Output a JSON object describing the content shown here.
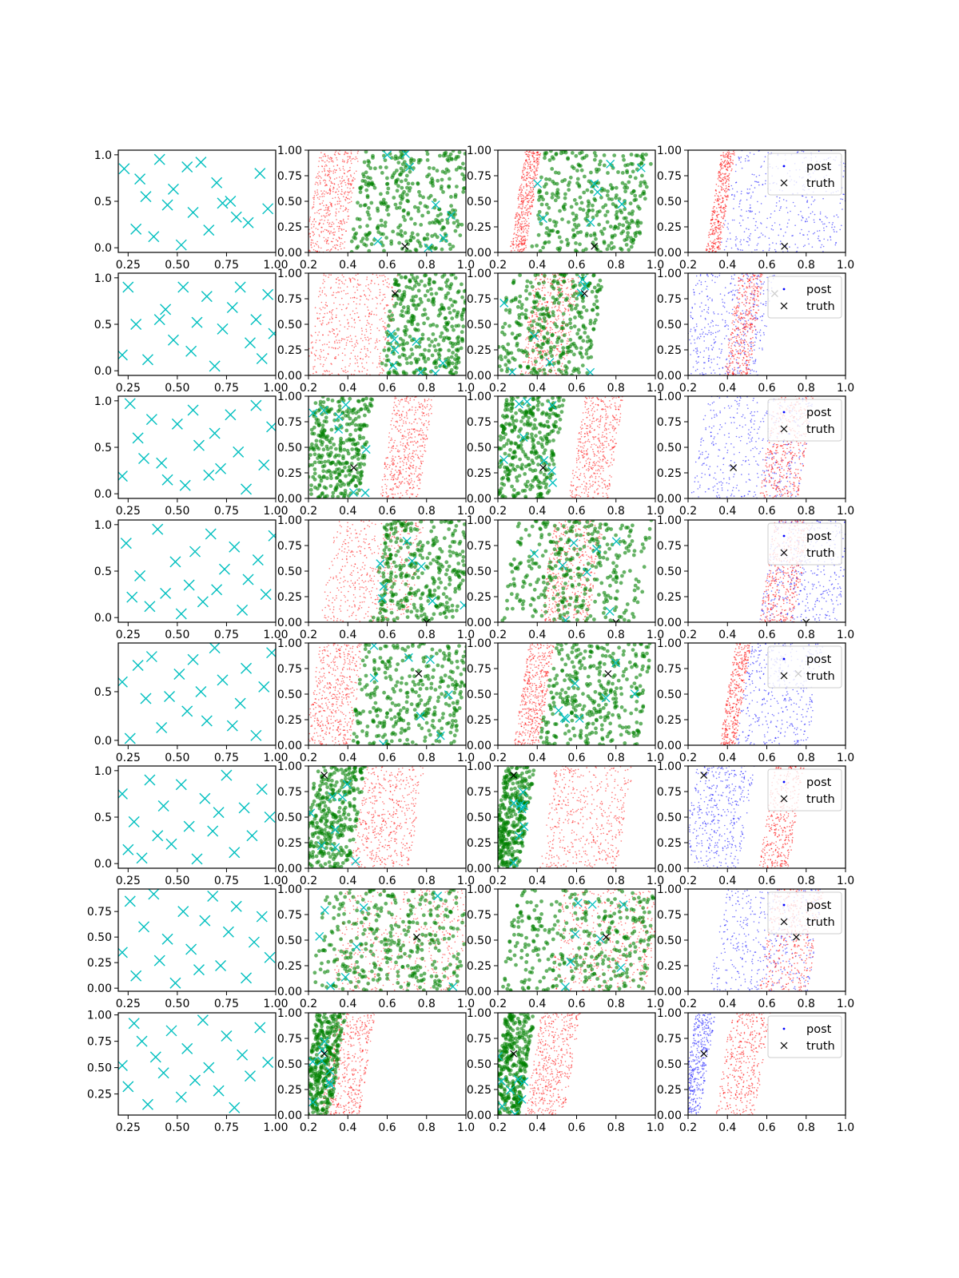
{
  "figure": {
    "colors": {
      "sample_markers": "#00bfbf",
      "posterior_red": "#ff0000",
      "posterior_green": "#008000",
      "posterior_blue": "#0000ff",
      "truth_marker": "#000000",
      "axes": "#000000",
      "background": "#ffffff"
    },
    "legend": {
      "entries": [
        "post",
        "truth"
      ],
      "location": "upper right"
    }
  },
  "chart_data": [
    {
      "type": "scatter",
      "grid": "8 rows x 4 columns of scatter panels",
      "columns": [
        {
          "column": 1,
          "content": "sample points (cyan x markers)",
          "xlim": [
            0.2,
            1.0
          ],
          "x_ticks": [
            "0.25",
            "0.50",
            "0.75",
            "1.00"
          ]
        },
        {
          "column": 2,
          "content": "green dots over red dots, cyan x markers, black truth x",
          "xlim": [
            0.2,
            1.0
          ],
          "ylim": [
            0.0,
            1.0
          ],
          "x_ticks": [
            "0.2",
            "0.4",
            "0.6",
            "0.8",
            "1.0"
          ],
          "y_ticks": [
            "0.00",
            "0.25",
            "0.50",
            "0.75",
            "1.00"
          ]
        },
        {
          "column": 3,
          "content": "green dots over red dots, cyan x markers, black truth x",
          "xlim": [
            0.2,
            1.0
          ],
          "ylim": [
            0.0,
            1.0
          ],
          "x_ticks": [
            "0.2",
            "0.4",
            "0.6",
            "0.8",
            "1.0"
          ],
          "y_ticks": [
            "0.00",
            "0.25",
            "0.50",
            "0.75",
            "1.00"
          ]
        },
        {
          "column": 4,
          "content": "blue (post) and red points, black truth x",
          "xlim": [
            0.2,
            1.0
          ],
          "ylim": [
            0.0,
            1.0
          ],
          "x_ticks": [
            "0.2",
            "0.4",
            "0.6",
            "0.8",
            "1.0"
          ],
          "y_ticks": [
            "0.00",
            "0.25",
            "0.50",
            "0.75",
            "1.00"
          ],
          "legend": [
            "post",
            "truth"
          ]
        }
      ],
      "rows": [
        {
          "row": 1,
          "col1_y_ticks": [
            "0.0",
            "0.5",
            "1.0"
          ],
          "col1_ylim": [
            -0.05,
            1.05
          ],
          "truth": [
            0.69,
            0.06
          ],
          "bands": {
            "c2_red": [
              0.22,
              0.42
            ],
            "c2_green": [
              0.45,
              1.0
            ],
            "c3_red": [
              0.3,
              0.38
            ],
            "c3_green": [
              0.4,
              0.95
            ],
            "c4_red": [
              0.33,
              0.4
            ],
            "c4_blue": [
              0.4,
              1.0
            ]
          },
          "sample_x": [
            0.23,
            0.29,
            0.31,
            0.34,
            0.38,
            0.41,
            0.45,
            0.48,
            0.52,
            0.55,
            0.58,
            0.62,
            0.66,
            0.7,
            0.73,
            0.77,
            0.8,
            0.86,
            0.92,
            0.96
          ],
          "sample_y": [
            0.85,
            0.2,
            0.74,
            0.55,
            0.12,
            0.95,
            0.46,
            0.63,
            0.03,
            0.87,
            0.38,
            0.92,
            0.19,
            0.7,
            0.48,
            0.5,
            0.33,
            0.27,
            0.8,
            0.42
          ]
        },
        {
          "row": 2,
          "col1_y_ticks": [
            "0.0",
            "0.5",
            "1.0"
          ],
          "col1_ylim": [
            -0.05,
            1.05
          ],
          "truth": [
            0.64,
            0.8
          ],
          "bands": {
            "c2_red": [
              0.22,
              0.62
            ],
            "c2_green": [
              0.6,
              1.0
            ],
            "c3_red": [
              0.35,
              0.58
            ],
            "c3_green": [
              0.22,
              0.7
            ],
            "c4_red": [
              0.42,
              0.55
            ],
            "c4_blue": [
              0.2,
              0.6
            ]
          },
          "sample_x": [
            0.22,
            0.25,
            0.29,
            0.35,
            0.41,
            0.44,
            0.48,
            0.53,
            0.57,
            0.6,
            0.65,
            0.69,
            0.73,
            0.78,
            0.82,
            0.87,
            0.9,
            0.93,
            0.96,
            0.99
          ],
          "sample_y": [
            0.17,
            0.9,
            0.5,
            0.12,
            0.55,
            0.66,
            0.33,
            0.9,
            0.21,
            0.52,
            0.8,
            0.05,
            0.45,
            0.68,
            0.9,
            0.3,
            0.55,
            0.13,
            0.82,
            0.4
          ]
        },
        {
          "row": 3,
          "col1_y_ticks": [
            "0.0",
            "0.5",
            "1.0"
          ],
          "col1_ylim": [
            -0.05,
            1.05
          ],
          "truth": [
            0.43,
            0.3
          ],
          "bands": {
            "c2_red": [
              0.6,
              0.8
            ],
            "c2_green": [
              0.2,
              0.5
            ],
            "c3_red": [
              0.6,
              0.8
            ],
            "c3_green": [
              0.2,
              0.5
            ],
            "c4_red": [
              0.6,
              0.8
            ],
            "c4_blue": [
              0.25,
              0.8
            ]
          },
          "sample_x": [
            0.22,
            0.26,
            0.3,
            0.33,
            0.37,
            0.42,
            0.45,
            0.5,
            0.54,
            0.58,
            0.61,
            0.66,
            0.69,
            0.72,
            0.77,
            0.81,
            0.85,
            0.9,
            0.94,
            0.98
          ],
          "sample_y": [
            0.19,
            0.97,
            0.6,
            0.38,
            0.8,
            0.33,
            0.15,
            0.75,
            0.09,
            0.9,
            0.52,
            0.2,
            0.65,
            0.27,
            0.85,
            0.45,
            0.05,
            0.95,
            0.31,
            0.72
          ]
        },
        {
          "row": 4,
          "col1_y_ticks": [
            "0.0",
            "0.5",
            "1.0"
          ],
          "col1_ylim": [
            -0.05,
            1.05
          ],
          "truth": [
            0.8,
            0.0
          ],
          "bands": {
            "c2_red": [
              0.3,
              0.75
            ],
            "c2_green": [
              0.55,
              1.0
            ],
            "c3_red": [
              0.45,
              0.7
            ],
            "c3_green": [
              0.25,
              0.95
            ],
            "c4_red": [
              0.6,
              0.78
            ],
            "c4_blue": [
              0.6,
              1.0
            ]
          },
          "sample_x": [
            0.24,
            0.27,
            0.31,
            0.36,
            0.4,
            0.44,
            0.49,
            0.52,
            0.56,
            0.59,
            0.63,
            0.67,
            0.7,
            0.74,
            0.79,
            0.83,
            0.86,
            0.91,
            0.95,
            0.99
          ],
          "sample_y": [
            0.8,
            0.22,
            0.45,
            0.12,
            0.95,
            0.26,
            0.6,
            0.04,
            0.35,
            0.71,
            0.17,
            0.9,
            0.3,
            0.52,
            0.76,
            0.08,
            0.41,
            0.62,
            0.25,
            0.88
          ]
        },
        {
          "row": 5,
          "col1_y_ticks": [
            "0.0",
            "0.5"
          ],
          "col1_ylim": [
            -0.05,
            1.0
          ],
          "truth": [
            0.76,
            0.7
          ],
          "bands": {
            "c2_red": [
              0.22,
              0.45
            ],
            "c2_green": [
              0.45,
              1.0
            ],
            "c3_red": [
              0.32,
              0.45
            ],
            "c3_green": [
              0.45,
              0.95
            ],
            "c4_red": [
              0.4,
              0.48
            ],
            "c4_blue": [
              0.48,
              0.85
            ]
          },
          "sample_x": [
            0.22,
            0.26,
            0.3,
            0.34,
            0.37,
            0.42,
            0.46,
            0.51,
            0.55,
            0.58,
            0.62,
            0.65,
            0.69,
            0.73,
            0.78,
            0.82,
            0.85,
            0.9,
            0.94,
            0.98
          ],
          "sample_y": [
            0.6,
            0.02,
            0.77,
            0.43,
            0.86,
            0.13,
            0.45,
            0.68,
            0.3,
            0.83,
            0.5,
            0.2,
            0.95,
            0.62,
            0.15,
            0.38,
            0.74,
            0.05,
            0.55,
            0.9
          ]
        },
        {
          "row": 6,
          "col1_y_ticks": [
            "0.0",
            "0.5",
            "1.0"
          ],
          "col1_ylim": [
            -0.05,
            1.05
          ],
          "truth": [
            0.28,
            0.91
          ],
          "bands": {
            "c2_red": [
              0.45,
              0.75
            ],
            "c2_green": [
              0.2,
              0.45
            ],
            "c3_red": [
              0.45,
              0.85
            ],
            "c3_green": [
              0.2,
              0.35
            ],
            "c4_red": [
              0.6,
              0.75
            ],
            "c4_blue": [
              0.2,
              0.5
            ]
          },
          "sample_x": [
            0.22,
            0.25,
            0.28,
            0.32,
            0.36,
            0.4,
            0.43,
            0.47,
            0.52,
            0.56,
            0.6,
            0.64,
            0.68,
            0.71,
            0.75,
            0.79,
            0.84,
            0.88,
            0.93,
            0.97
          ],
          "sample_y": [
            0.75,
            0.15,
            0.45,
            0.06,
            0.9,
            0.3,
            0.62,
            0.21,
            0.85,
            0.4,
            0.05,
            0.7,
            0.35,
            0.55,
            0.95,
            0.12,
            0.6,
            0.3,
            0.8,
            0.5
          ]
        },
        {
          "row": 7,
          "col1_y_ticks": [
            "0.00",
            "0.25",
            "0.50",
            "0.75"
          ],
          "col1_ylim": [
            -0.03,
            0.97
          ],
          "truth": [
            0.75,
            0.53
          ],
          "bands": {
            "c2_red": [
              0.35,
              1.0
            ],
            "c2_green": [
              0.25,
              1.0
            ],
            "c3_red": [
              0.5,
              1.0
            ],
            "c3_green": [
              0.25,
              1.0
            ],
            "c4_red": [
              0.6,
              0.85
            ],
            "c4_blue": [
              0.35,
              0.85
            ]
          },
          "sample_x": [
            0.22,
            0.26,
            0.29,
            0.33,
            0.38,
            0.41,
            0.45,
            0.49,
            0.53,
            0.57,
            0.61,
            0.64,
            0.68,
            0.72,
            0.76,
            0.8,
            0.85,
            0.89,
            0.93,
            0.97
          ],
          "sample_y": [
            0.35,
            0.85,
            0.12,
            0.6,
            0.92,
            0.27,
            0.48,
            0.05,
            0.75,
            0.38,
            0.18,
            0.66,
            0.9,
            0.22,
            0.55,
            0.8,
            0.1,
            0.45,
            0.7,
            0.3
          ]
        },
        {
          "row": 8,
          "col1_y_ticks": [
            "0.25",
            "0.50",
            "0.75",
            "1.00"
          ],
          "col1_ylim": [
            0.05,
            1.02
          ],
          "truth": [
            0.28,
            0.6
          ],
          "bands": {
            "c2_red": [
              0.3,
              0.5
            ],
            "c2_green": [
              0.2,
              0.35
            ],
            "c3_red": [
              0.38,
              0.58
            ],
            "c3_green": [
              0.2,
              0.35
            ],
            "c4_red": [
              0.38,
              0.58
            ],
            "c4_blue": [
              0.2,
              0.3
            ]
          },
          "sample_x": [
            0.22,
            0.25,
            0.28,
            0.32,
            0.35,
            0.39,
            0.43,
            0.47,
            0.52,
            0.55,
            0.59,
            0.63,
            0.66,
            0.71,
            0.75,
            0.79,
            0.83,
            0.87,
            0.92,
            0.96
          ],
          "sample_y": [
            0.52,
            0.32,
            0.92,
            0.75,
            0.15,
            0.6,
            0.45,
            0.85,
            0.22,
            0.68,
            0.38,
            0.95,
            0.5,
            0.28,
            0.8,
            0.12,
            0.62,
            0.42,
            0.88,
            0.55
          ]
        }
      ]
    }
  ]
}
